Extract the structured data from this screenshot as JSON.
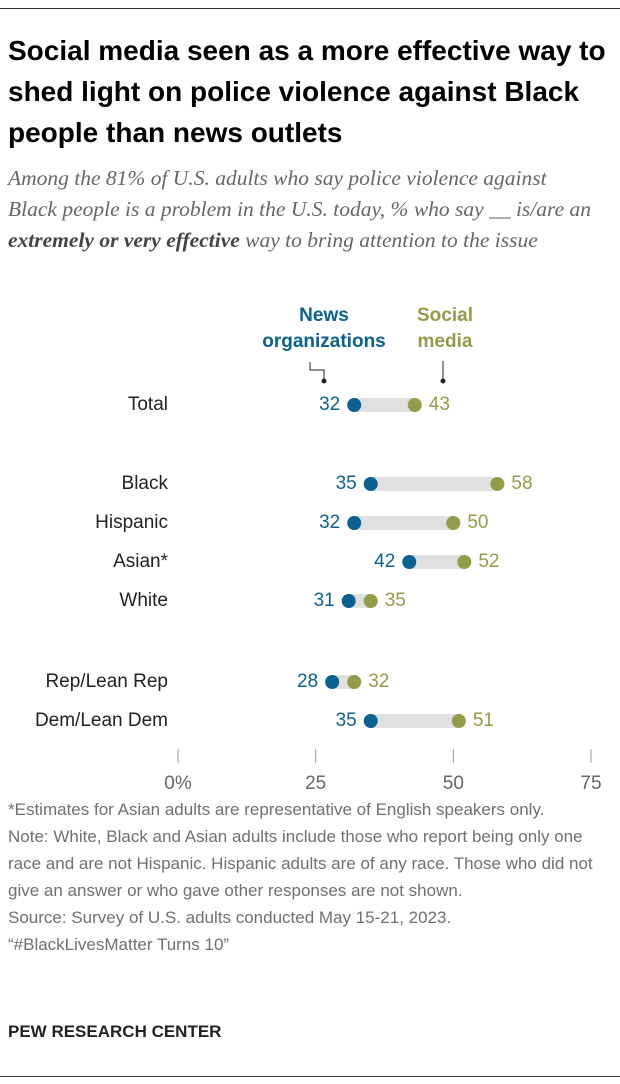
{
  "chart_data": {
    "type": "dot",
    "title": "Social media seen as a more effective way to shed light on police violence against Black people than news outlets",
    "subtitle": [
      "Among the 81% of U.S. adults who say police violence against Black people is a problem in the U.S. today, % who say __ is/are an ",
      "extremely or very effective",
      " way to bring attention to the issue"
    ],
    "categories": [
      "Total",
      "Black",
      "Hispanic",
      "Asian*",
      "White",
      "Rep/Lean Rep",
      "Dem/Lean Dem"
    ],
    "series": [
      {
        "name": "News organizations",
        "color": "#0b6290",
        "values": [
          32,
          35,
          32,
          42,
          31,
          28,
          35
        ]
      },
      {
        "name": "Social media",
        "color": "#949c4a",
        "values": [
          43,
          58,
          50,
          52,
          35,
          32,
          51
        ]
      }
    ],
    "xlim": [
      0,
      75
    ],
    "xticks": [
      {
        "value": 0,
        "label": "0%"
      },
      25,
      50,
      75
    ],
    "notes": [
      "*Estimates for Asian adults are representative of English speakers only.",
      "Note: White, Black and Asian adults include those who report being only one race and are not Hispanic. Hispanic adults are of any race. Those who did not give an answer or who gave other responses are not shown.",
      "Source: Survey of U.S. adults conducted May 15-21, 2023.",
      "“#BlackLivesMatter Turns 10”"
    ],
    "footer": "PEW RESEARCH CENTER"
  }
}
